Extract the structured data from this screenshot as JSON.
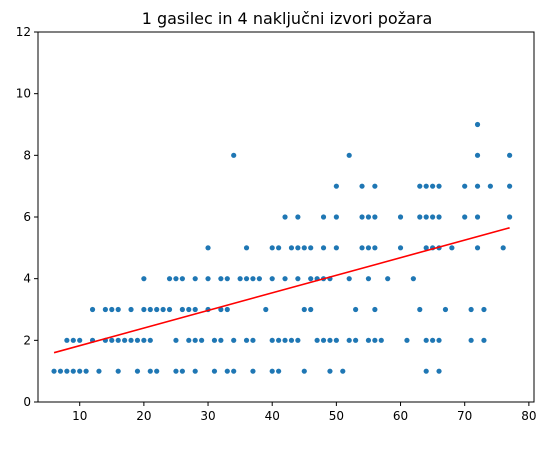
{
  "chart_data": {
    "type": "scatter",
    "title": "1 gasilec in 4 naključni izvori požara",
    "xlabel": "",
    "ylabel": "",
    "xlim": [
      3.5,
      80.8
    ],
    "ylim": [
      0,
      12
    ],
    "x_ticks": [
      10,
      20,
      30,
      40,
      50,
      60,
      70,
      80
    ],
    "y_ticks": [
      0,
      2,
      4,
      6,
      8,
      10,
      12
    ],
    "grid": false,
    "point_color": "#1f77b4",
    "line_color": "#ff0000",
    "series": [
      {
        "type": "scatter",
        "points": [
          [
            6,
            1
          ],
          [
            7,
            1
          ],
          [
            8,
            1
          ],
          [
            9,
            1
          ],
          [
            10,
            1
          ],
          [
            11,
            1
          ],
          [
            13,
            1
          ],
          [
            16,
            1
          ],
          [
            19,
            1
          ],
          [
            21,
            1
          ],
          [
            22,
            1
          ],
          [
            25,
            1
          ],
          [
            26,
            1
          ],
          [
            28,
            1
          ],
          [
            31,
            1
          ],
          [
            33,
            1
          ],
          [
            34,
            1
          ],
          [
            37,
            1
          ],
          [
            40,
            1
          ],
          [
            41,
            1
          ],
          [
            45,
            1
          ],
          [
            49,
            1
          ],
          [
            51,
            1
          ],
          [
            64,
            1
          ],
          [
            66,
            1
          ],
          [
            8,
            2
          ],
          [
            9,
            2
          ],
          [
            10,
            2
          ],
          [
            12,
            2
          ],
          [
            14,
            2
          ],
          [
            15,
            2
          ],
          [
            16,
            2
          ],
          [
            17,
            2
          ],
          [
            18,
            2
          ],
          [
            19,
            2
          ],
          [
            20,
            2
          ],
          [
            21,
            2
          ],
          [
            25,
            2
          ],
          [
            27,
            2
          ],
          [
            28,
            2
          ],
          [
            29,
            2
          ],
          [
            31,
            2
          ],
          [
            32,
            2
          ],
          [
            34,
            2
          ],
          [
            36,
            2
          ],
          [
            37,
            2
          ],
          [
            40,
            2
          ],
          [
            41,
            2
          ],
          [
            42,
            2
          ],
          [
            43,
            2
          ],
          [
            44,
            2
          ],
          [
            47,
            2
          ],
          [
            48,
            2
          ],
          [
            49,
            2
          ],
          [
            50,
            2
          ],
          [
            52,
            2
          ],
          [
            53,
            2
          ],
          [
            55,
            2
          ],
          [
            56,
            2
          ],
          [
            57,
            2
          ],
          [
            61,
            2
          ],
          [
            64,
            2
          ],
          [
            65,
            2
          ],
          [
            66,
            2
          ],
          [
            71,
            2
          ],
          [
            73,
            2
          ],
          [
            12,
            3
          ],
          [
            14,
            3
          ],
          [
            15,
            3
          ],
          [
            16,
            3
          ],
          [
            18,
            3
          ],
          [
            20,
            3
          ],
          [
            21,
            3
          ],
          [
            22,
            3
          ],
          [
            23,
            3
          ],
          [
            24,
            3
          ],
          [
            26,
            3
          ],
          [
            27,
            3
          ],
          [
            28,
            3
          ],
          [
            30,
            3
          ],
          [
            32,
            3
          ],
          [
            33,
            3
          ],
          [
            39,
            3
          ],
          [
            45,
            3
          ],
          [
            46,
            3
          ],
          [
            53,
            3
          ],
          [
            56,
            3
          ],
          [
            63,
            3
          ],
          [
            67,
            3
          ],
          [
            71,
            3
          ],
          [
            73,
            3
          ],
          [
            20,
            4
          ],
          [
            24,
            4
          ],
          [
            25,
            4
          ],
          [
            26,
            4
          ],
          [
            28,
            4
          ],
          [
            30,
            4
          ],
          [
            32,
            4
          ],
          [
            33,
            4
          ],
          [
            35,
            4
          ],
          [
            36,
            4
          ],
          [
            37,
            4
          ],
          [
            38,
            4
          ],
          [
            40,
            4
          ],
          [
            42,
            4
          ],
          [
            44,
            4
          ],
          [
            46,
            4
          ],
          [
            47,
            4
          ],
          [
            48,
            4
          ],
          [
            49,
            4
          ],
          [
            52,
            4
          ],
          [
            55,
            4
          ],
          [
            58,
            4
          ],
          [
            62,
            4
          ],
          [
            30,
            5
          ],
          [
            36,
            5
          ],
          [
            40,
            5
          ],
          [
            41,
            5
          ],
          [
            43,
            5
          ],
          [
            44,
            5
          ],
          [
            45,
            5
          ],
          [
            46,
            5
          ],
          [
            48,
            5
          ],
          [
            50,
            5
          ],
          [
            54,
            5
          ],
          [
            55,
            5
          ],
          [
            56,
            5
          ],
          [
            60,
            5
          ],
          [
            64,
            5
          ],
          [
            65,
            5
          ],
          [
            66,
            5
          ],
          [
            68,
            5
          ],
          [
            72,
            5
          ],
          [
            76,
            5
          ],
          [
            42,
            6
          ],
          [
            44,
            6
          ],
          [
            48,
            6
          ],
          [
            50,
            6
          ],
          [
            54,
            6
          ],
          [
            55,
            6
          ],
          [
            56,
            6
          ],
          [
            60,
            6
          ],
          [
            63,
            6
          ],
          [
            64,
            6
          ],
          [
            65,
            6
          ],
          [
            66,
            6
          ],
          [
            70,
            6
          ],
          [
            72,
            6
          ],
          [
            77,
            6
          ],
          [
            50,
            7
          ],
          [
            54,
            7
          ],
          [
            56,
            7
          ],
          [
            63,
            7
          ],
          [
            64,
            7
          ],
          [
            65,
            7
          ],
          [
            66,
            7
          ],
          [
            70,
            7
          ],
          [
            72,
            7
          ],
          [
            74,
            7
          ],
          [
            77,
            7
          ],
          [
            34,
            8
          ],
          [
            52,
            8
          ],
          [
            72,
            8
          ],
          [
            77,
            8
          ],
          [
            72,
            9
          ]
        ]
      },
      {
        "type": "line",
        "points": [
          [
            6,
            1.6
          ],
          [
            77,
            5.65
          ]
        ]
      }
    ]
  }
}
